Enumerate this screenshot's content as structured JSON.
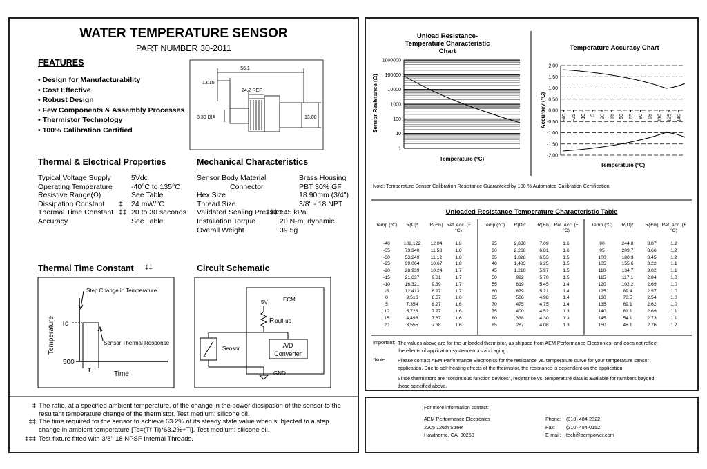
{
  "header": {
    "title": "WATER TEMPERATURE SENSOR",
    "part_number": "PART NUMBER 30-2011"
  },
  "features": {
    "heading": "FEATURES",
    "items": [
      "Design for Manufacturability",
      "Cost Effective",
      "Robust Design",
      "Few Components & Assembly Processes",
      "Thermistor Technology",
      "100% Calibration Certified"
    ]
  },
  "dimensions": {
    "length": "56.1",
    "offset": "13.10",
    "ref": "24.2 REF",
    "diameter": "8.30 DIA",
    "height": "13.00"
  },
  "thermal_electrical": {
    "heading": "Thermal & Electrical Properties",
    "rows": [
      {
        "label": "Typical Voltage Supply",
        "value": "5Vdc"
      },
      {
        "label": "Operating Temperature",
        "value": "-40°C to 135°C"
      },
      {
        "label": "Resistive Range(Ω)",
        "value": "See Table"
      },
      {
        "label": "Dissipation Constant",
        "mark": "‡",
        "value": "24 mW/°C"
      },
      {
        "label": "Thermal Time Constant",
        "mark": "‡‡",
        "value": "20 to 30 seconds"
      },
      {
        "label": "Accuracy",
        "value": "See Table"
      }
    ]
  },
  "mechanical": {
    "heading": "Mechanical Characteristics",
    "rows": [
      {
        "label": "Sensor Body Material",
        "value": "Brass Housing"
      },
      {
        "label": "Connector",
        "value": "PBT 30% GF"
      },
      {
        "label": "Hex Size",
        "value": "18.90mm (3/4\")"
      },
      {
        "label": "Thread Size",
        "value": "3/8\" - 18 NPT"
      },
      {
        "label": "Validated Sealing Pressure",
        "mark": "‡‡‡",
        "value": "145 kPa"
      },
      {
        "label": "Installation Torque",
        "value": "20 N-m, dynamic"
      },
      {
        "label": "Overall Weight",
        "value": "39.5g"
      }
    ]
  },
  "thermal_time_constant": {
    "heading": "Thermal Time Constant",
    "mark": "‡‡",
    "step_label": "Step Change in Temperature",
    "response_label": "Sensor Thermal Response",
    "y_axis": "Temperature",
    "x_axis": "Time",
    "tc": "Tc",
    "base": "500",
    "tau": "τ"
  },
  "circuit": {
    "heading": "Circuit Schematic",
    "ecm": "ECM",
    "voltage": "5V",
    "pullup": "R",
    "pullup_sub": "pull-up",
    "sensor": "Sensor",
    "ad": "A/D",
    "converter": "Converter",
    "gnd": "GND"
  },
  "footnotes": [
    {
      "mark": "‡",
      "text": "The ratio, at a specified ambient temperature, of the change in the power dissipation of the sensor to the resultant temperature change of the thermistor.  Test medium: silicone oil."
    },
    {
      "mark": "‡‡",
      "text": "The time required for the sensor to achieve 63.2% of its steady state value when subjected to a step change in ambient temperature [Tc=(Tf-Ti)*63.2%+Ti].  Test medium: silicone oil."
    },
    {
      "mark": "‡‡‡",
      "text": "Test fixture fitted with 3/8\"-18 NPSF Internal Threads."
    }
  ],
  "resistance_chart": {
    "title": "Unload Resistance-Temperature Characteristic Chart",
    "y_label": "Sensor Resistance (Ω)",
    "x_label": "Temperature (°C)",
    "ylim": [
      1,
      1000000
    ],
    "yticks": [
      1000000,
      100000,
      10000,
      1000,
      100,
      10,
      1
    ],
    "log_scale": true
  },
  "accuracy_chart": {
    "title": "Temperature Accuracy Chart",
    "y_label": "Accuracy (°C)",
    "x_label": "Temperature (°C)",
    "ylim": [
      -2,
      2
    ],
    "yticks": [
      {
        "value": 2,
        "label": "2.00"
      },
      {
        "value": 1.5,
        "label": "1.50"
      },
      {
        "value": 1,
        "label": "1.00"
      },
      {
        "value": 0.5,
        "label": "0.50"
      },
      {
        "value": 0,
        "label": "0.00"
      },
      {
        "value": -0.5,
        "label": "-0.50"
      },
      {
        "value": -1,
        "label": "-1.00"
      },
      {
        "value": -1.5,
        "label": "-1.50"
      },
      {
        "value": -2,
        "label": "-2.00"
      }
    ],
    "xlim": [
      -45,
      150
    ],
    "xticks": [
      -40,
      -25,
      -10,
      5,
      20,
      35,
      50,
      65,
      80,
      95,
      110,
      125,
      140
    ]
  },
  "calibration_note": "Note: Temperature Sensor Calibration Resistance Guaranteed by 100 % Automated Calibration Certification.",
  "table": {
    "title": "Unloaded Resistance-Temperature Characteristic Table",
    "headers": [
      "Temp (°C)",
      "R(Ω)*",
      "R(±%)",
      "Ref. Acc. (±°C)"
    ],
    "groups": [
      [
        [
          "-40",
          "102,122",
          "12.04",
          "1.8"
        ],
        [
          "-35",
          "73,340",
          "11.58",
          "1.8"
        ],
        [
          "-30",
          "53,249",
          "11.12",
          "1.8"
        ],
        [
          "-25",
          "39,064",
          "10.67",
          "1.8"
        ],
        [
          "-20",
          "28,939",
          "10.24",
          "1.7"
        ],
        [
          "-15",
          "21,637",
          "9.81",
          "1.7"
        ],
        [
          "-10",
          "16,321",
          "9.39",
          "1.7"
        ],
        [
          "-5",
          "12,413",
          "8.97",
          "1.7"
        ],
        [
          "0",
          "9,516",
          "8.57",
          "1.6"
        ],
        [
          "5",
          "7,354",
          "8.27",
          "1.6"
        ],
        [
          "10",
          "5,728",
          "7.97",
          "1.6"
        ],
        [
          "15",
          "4,496",
          "7.67",
          "1.6"
        ],
        [
          "20",
          "3,555",
          "7.38",
          "1.6"
        ]
      ],
      [
        [
          "25",
          "2,830",
          "7.09",
          "1.6"
        ],
        [
          "30",
          "2,268",
          "6.81",
          "1.6"
        ],
        [
          "35",
          "1,828",
          "6.53",
          "1.5"
        ],
        [
          "40",
          "1,483",
          "6.25",
          "1.5"
        ],
        [
          "45",
          "1,210",
          "5.97",
          "1.5"
        ],
        [
          "50",
          "992",
          "5.70",
          "1.5"
        ],
        [
          "55",
          "819",
          "5.45",
          "1.4"
        ],
        [
          "60",
          "679",
          "5.21",
          "1.4"
        ],
        [
          "65",
          "566",
          "4.98",
          "1.4"
        ],
        [
          "70",
          "475",
          "4.75",
          "1.4"
        ],
        [
          "75",
          "400",
          "4.52",
          "1.3"
        ],
        [
          "80",
          "338",
          "4.30",
          "1.3"
        ],
        [
          "85",
          "287",
          "4.08",
          "1.3"
        ]
      ],
      [
        [
          "90",
          "244.8",
          "3.87",
          "1.2"
        ],
        [
          "95",
          "209.7",
          "3.66",
          "1.2"
        ],
        [
          "100",
          "180.3",
          "3.45",
          "1.2"
        ],
        [
          "105",
          "155.6",
          "3.22",
          "1.1"
        ],
        [
          "110",
          "134.7",
          "3.02",
          "1.1"
        ],
        [
          "115",
          "117.1",
          "2.84",
          "1.0"
        ],
        [
          "120",
          "102.2",
          "2.69",
          "1.0"
        ],
        [
          "125",
          "89.4",
          "2.57",
          "1.0"
        ],
        [
          "130",
          "78.5",
          "2.54",
          "1.0"
        ],
        [
          "135",
          "69.1",
          "2.62",
          "1.0"
        ],
        [
          "140",
          "61.1",
          "2.69",
          "1.1"
        ],
        [
          "145",
          "54.1",
          "2.73",
          "1.1"
        ],
        [
          "150",
          "48.1",
          "2.76",
          "1.2"
        ]
      ]
    ]
  },
  "notes": [
    {
      "label": "Important:",
      "paragraphs": [
        "The values above are for the unloaded thermistor, as shipped from AEM Performance Electronics, and does not reflect the effects of application system errors and aging."
      ]
    },
    {
      "label": "*Note:",
      "paragraphs": [
        "Please contact AEM Performance Electronics for the resistance vs. temperature curve for your temperature sensor application. Due to self-heating effects of the thermistor, the resistance is dependent on the application.",
        "Since thermistors are \"continuous function devices\", resistance vs. temperature data is available for numbers beyond those specified above."
      ]
    }
  ],
  "contact": {
    "heading": "For more information contact:",
    "address": [
      "AEM Performance Electronics",
      "2205 126th Street",
      "Hawthorne, CA. 90250"
    ],
    "lines": [
      {
        "label": "Phone:",
        "value": "(310) 484-2322"
      },
      {
        "label": "Fax:",
        "value": "(310) 484-0152"
      },
      {
        "label": "E-mail:",
        "value": "tech@aempower.com"
      }
    ]
  }
}
